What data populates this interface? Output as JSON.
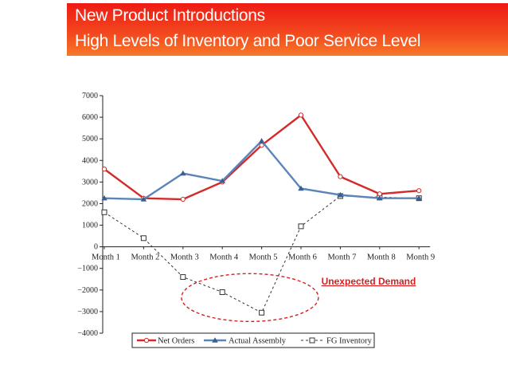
{
  "banner": {
    "line1": "New Product Introductions",
    "line2": "High Levels of Inventory and Poor Service Level"
  },
  "chart_data": {
    "type": "line",
    "title": "New Product Introductions High Levels of Inventory and Poor Service Level",
    "categories": [
      "Month 1",
      "Month 2",
      "Month 3",
      "Month 4",
      "Month 5",
      "Month 6",
      "Month 7",
      "Month 8",
      "Month 9"
    ],
    "ylim": [
      -4000,
      7000
    ],
    "yticks": [
      7000,
      6000,
      5000,
      4000,
      3000,
      2000,
      1000,
      0,
      -1000,
      -2000,
      -3000,
      -4000
    ],
    "ytick_labels": [
      "7000",
      "6000",
      "5000",
      "4000",
      "3000",
      "2000",
      "1000",
      "0",
      "−1000",
      "−2000",
      "−3000",
      "−4000"
    ],
    "series": [
      {
        "name": "Net Orders",
        "values": [
          3600,
          2250,
          2200,
          3000,
          4700,
          6100,
          3250,
          2450,
          2600
        ],
        "color": "#d42a2a",
        "marker": "circle"
      },
      {
        "name": "Actual Assembly",
        "values": [
          2250,
          2200,
          3400,
          3050,
          4900,
          2700,
          2400,
          2250,
          2250
        ],
        "color": "#5b85b8",
        "marker": "triangle"
      },
      {
        "name": "FG Inventory",
        "values": [
          1600,
          400,
          -1400,
          -2100,
          -3050,
          950,
          2350,
          2300,
          2250
        ],
        "color": "#333333",
        "marker": "square",
        "dashed": true
      }
    ],
    "legend": [
      "Net Orders",
      "Actual Assembly",
      "FG Inventory"
    ],
    "legend_position": "bottom",
    "annotation": {
      "text": "Unexpected Demand",
      "color": "#d42020"
    },
    "grid": false
  },
  "colors": {
    "banner_red": "#ee1b14",
    "banner_orange": "#f77828",
    "annotation": "#d42020"
  }
}
